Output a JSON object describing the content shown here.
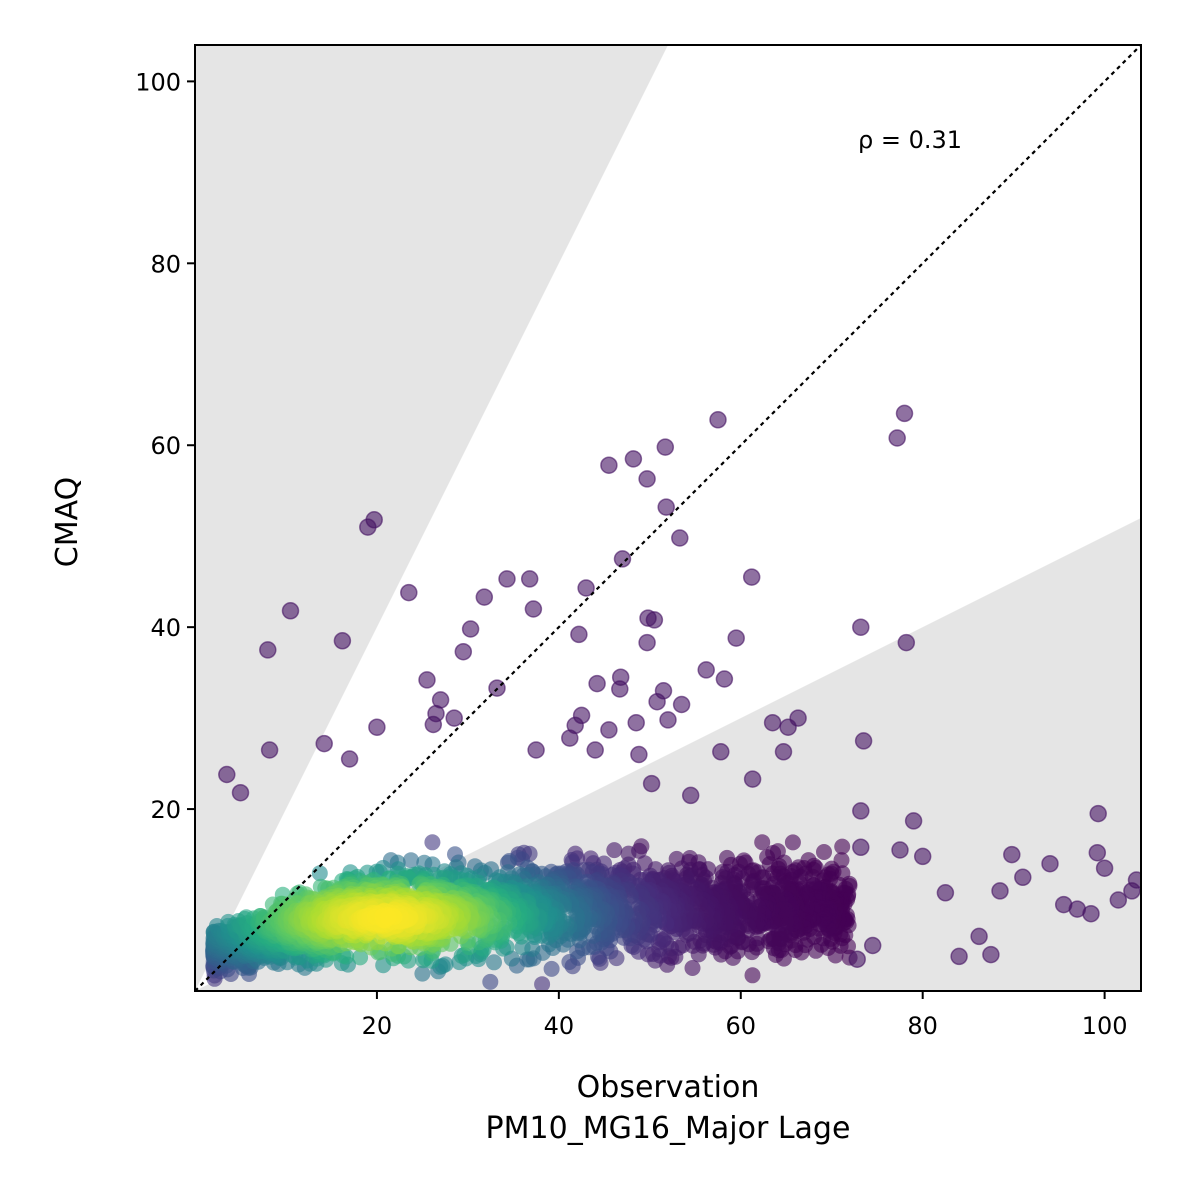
{
  "chart_data": {
    "type": "scatter",
    "title": "",
    "xlabel": "Observation",
    "xlabel_sub": "PM10_MG16_Major Lage",
    "ylabel": "CMAQ",
    "xlim": [
      0,
      104
    ],
    "ylim": [
      0,
      104
    ],
    "xticks": [
      20,
      40,
      60,
      80,
      100
    ],
    "yticks": [
      20,
      40,
      60,
      80,
      100
    ],
    "annotation": "ρ = 0.31",
    "grid": false,
    "legend": "none",
    "reference_line": {
      "type": "1:1",
      "style": "dotted",
      "color": "#000000"
    },
    "shaded_regions": [
      {
        "description": "y > 2x",
        "color": "#e5e5e5"
      },
      {
        "description": "y < 0.5x",
        "color": "#e5e5e5"
      }
    ],
    "colormap": "viridis (point density)",
    "marker_edge_opacity": 0.6,
    "outlier_points": [
      [
        8,
        37.5
      ],
      [
        10.5,
        41.8
      ],
      [
        8.2,
        26.5
      ],
      [
        3.5,
        23.8
      ],
      [
        5,
        21.8
      ],
      [
        19,
        51
      ],
      [
        19.7,
        51.8
      ],
      [
        16.2,
        38.5
      ],
      [
        23.5,
        43.8
      ],
      [
        20,
        29
      ],
      [
        14.2,
        27.2
      ],
      [
        17,
        25.5
      ],
      [
        29.5,
        37.3
      ],
      [
        30.3,
        39.8
      ],
      [
        31.8,
        43.3
      ],
      [
        34.3,
        45.3
      ],
      [
        36.8,
        45.3
      ],
      [
        37.2,
        42
      ],
      [
        33.2,
        33.3
      ],
      [
        27,
        32
      ],
      [
        28.5,
        30
      ],
      [
        25.5,
        34.2
      ],
      [
        26.5,
        30.5
      ],
      [
        26.2,
        29.3
      ],
      [
        45.5,
        57.8
      ],
      [
        48.2,
        58.5
      ],
      [
        49.7,
        56.3
      ],
      [
        51.7,
        59.8
      ],
      [
        51.8,
        53.2
      ],
      [
        53.3,
        49.8
      ],
      [
        47,
        47.5
      ],
      [
        43,
        44.3
      ],
      [
        42.2,
        39.2
      ],
      [
        49.8,
        41
      ],
      [
        50.5,
        40.8
      ],
      [
        49.7,
        38.3
      ],
      [
        46.8,
        34.5
      ],
      [
        46.7,
        33.2
      ],
      [
        44.2,
        33.8
      ],
      [
        51.5,
        33
      ],
      [
        50.8,
        31.8
      ],
      [
        53.5,
        31.5
      ],
      [
        42.5,
        30.3
      ],
      [
        41.8,
        29.2
      ],
      [
        37.5,
        26.5
      ],
      [
        44,
        26.5
      ],
      [
        41.2,
        27.8
      ],
      [
        45.5,
        28.7
      ],
      [
        48.5,
        29.5
      ],
      [
        52,
        29.8
      ],
      [
        48.8,
        26
      ],
      [
        57.5,
        62.8
      ],
      [
        61.2,
        45.5
      ],
      [
        59.5,
        38.8
      ],
      [
        56.2,
        35.3
      ],
      [
        58.2,
        34.3
      ],
      [
        57.8,
        26.3
      ],
      [
        63.5,
        29.5
      ],
      [
        66.3,
        30
      ],
      [
        65.2,
        29
      ],
      [
        64.7,
        26.3
      ],
      [
        61.3,
        23.3
      ],
      [
        54.5,
        21.5
      ],
      [
        50.2,
        22.8
      ],
      [
        77.2,
        60.8
      ],
      [
        78,
        63.5
      ],
      [
        73.2,
        40
      ],
      [
        78.2,
        38.3
      ],
      [
        73.5,
        27.5
      ],
      [
        73.2,
        19.8
      ],
      [
        77.5,
        15.5
      ],
      [
        79,
        18.7
      ],
      [
        73.2,
        15.8
      ],
      [
        87.5,
        4
      ],
      [
        84,
        3.8
      ],
      [
        86.2,
        6
      ],
      [
        74.5,
        5
      ],
      [
        72.8,
        3.5
      ],
      [
        99.3,
        19.5
      ],
      [
        99.2,
        15.2
      ],
      [
        94,
        14
      ],
      [
        89.8,
        15
      ],
      [
        97,
        9
      ],
      [
        101.5,
        10
      ],
      [
        103,
        11
      ],
      [
        100,
        13.5
      ],
      [
        103.5,
        12.2
      ],
      [
        80,
        14.8
      ],
      [
        91,
        12.5
      ],
      [
        88.5,
        11
      ],
      [
        82.5,
        10.8
      ],
      [
        95.5,
        9.5
      ],
      [
        98.5,
        8.5
      ]
    ]
  }
}
